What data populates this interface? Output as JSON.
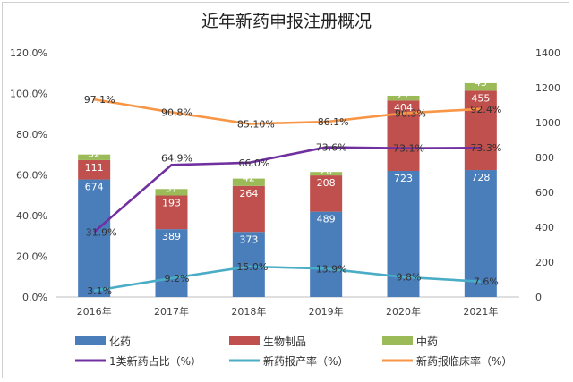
{
  "chart_data": {
    "type": "bar+line",
    "title": "近年新药申报注册概况",
    "categories": [
      "2016年",
      "2017年",
      "2018年",
      "2019年",
      "2020年",
      "2021年"
    ],
    "left_axis": {
      "ticks": [
        "0.0%",
        "20.0%",
        "40.0%",
        "60.0%",
        "80.0%",
        "100.0%",
        "120.0%"
      ],
      "range": [
        0,
        120
      ]
    },
    "right_axis": {
      "ticks": [
        "0",
        "200",
        "400",
        "600",
        "800",
        "1000",
        "1200",
        "1400"
      ],
      "range": [
        0,
        1400
      ]
    },
    "bar_series": [
      {
        "name": "化药",
        "color": "#4a7ebb",
        "values": [
          674,
          389,
          373,
          489,
          723,
          728
        ],
        "labels": [
          "674",
          "389",
          "373",
          "489",
          "723",
          "728"
        ]
      },
      {
        "name": "生物制品",
        "color": "#c0504d",
        "values": [
          111,
          193,
          264,
          208,
          404,
          455
        ],
        "labels": [
          "111",
          "193",
          "264",
          "208",
          "404",
          "455"
        ]
      },
      {
        "name": "中药",
        "color": "#9bbb59",
        "values": [
          32,
          37,
          42,
          20,
          27,
          43
        ],
        "labels": [
          "32",
          "37",
          "42",
          "20",
          "27",
          "43"
        ]
      }
    ],
    "line_series": [
      {
        "name": "1类新药占比（%）",
        "color": "#7030a0",
        "values": [
          31.9,
          64.9,
          66.0,
          73.6,
          73.1,
          73.3
        ],
        "labels": [
          "31.9%",
          "64.9%",
          "66.0%",
          "73.6%",
          "73.1%",
          "73.3%"
        ]
      },
      {
        "name": "新药报产率（%）",
        "color": "#4bacc6",
        "values": [
          3.1,
          9.2,
          15.0,
          13.9,
          9.8,
          7.6
        ],
        "labels": [
          "3.1%",
          "9.2%",
          "15.0%",
          "13.9%",
          "9.8%",
          "7.6%"
        ]
      },
      {
        "name": "新药报临床率（%）",
        "color": "#f79646",
        "values": [
          97.1,
          90.8,
          85.1,
          86.1,
          90.3,
          92.4
        ],
        "labels": [
          "97.1%",
          "90.8%",
          "85.10%",
          "86.1%",
          "90.3%",
          "92.4%"
        ]
      }
    ],
    "legend_position": "bottom",
    "grid": false
  }
}
